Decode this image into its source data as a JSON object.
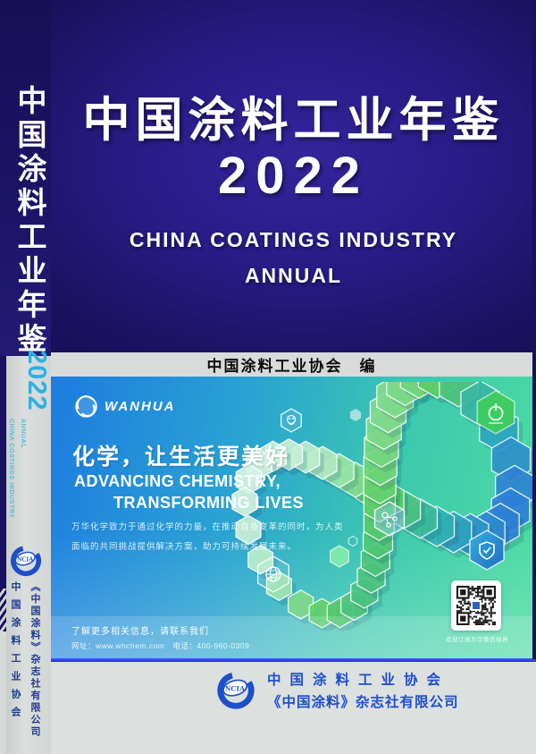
{
  "spine": {
    "title": "中国涂料工业年鉴",
    "year": "2022",
    "subtitle_line1": "CHINA COATINGS INDUSTRY",
    "subtitle_line2": "ANNUAL",
    "logo_text": "NCIA",
    "org": "中国涂料工业协会",
    "publisher": "《中国涂料》杂志社有限公司"
  },
  "cover": {
    "title": "中国涂料工业年鉴",
    "year": "2022",
    "subtitle_line1": "CHINA COATINGS INDUSTRY",
    "subtitle_line2": "ANNUAL",
    "editor_line": "中国涂料工业协会　编"
  },
  "ad": {
    "brand": "WANHUA",
    "slogan_cn": "化学，让生活更美好",
    "slogan_en_line1": "ADVANCING CHEMISTRY,",
    "slogan_en_line2": "TRANSFORMING LIVES",
    "body_line1": "万华化学致力于通过化学的力量，在推动自身变革的同时，为人类",
    "body_line2": "面临的共同挑战提供解决方案，助力可持续发展未来。",
    "contact_line1": "了解更多相关信息，请联系我们",
    "contact_line2": "网址：www.whchem.com　电话：400-960-0309",
    "qr_caption": "欢迎订阅万华微信视界"
  },
  "footer": {
    "logo_text": "NCIA",
    "org": "中国涂料工业协会",
    "publisher": "《中国涂料》杂志社有限公司"
  },
  "icons": {
    "wanhua-logo-icon": "circular swoosh",
    "ncia-logo-icon": "C ring with NCIA ellipse",
    "qr-code": "wechat qr code",
    "hex-plug-icon": "power plug in green hexagon",
    "hex-shield-icon": "shield check in blue hexagon",
    "hex-globe-icon": "globe in outlined hexagon",
    "hex-molecule-icon": "molecule in translucent hexagon",
    "hex-lab-icon": "small outlined hexagon glyph",
    "infinity-ribbon": "hexagon plates forming infinity loop"
  },
  "colors": {
    "cover_navy": "#1b115f",
    "spine_cyan": "#2ab2e5",
    "ncia_blue": "#1d4ecb",
    "ad_blue": "#1d7ce0",
    "ad_green": "#4fdda2",
    "band_gray": "#d8dbd9",
    "footer_line_blue": "#1f2cd8"
  }
}
